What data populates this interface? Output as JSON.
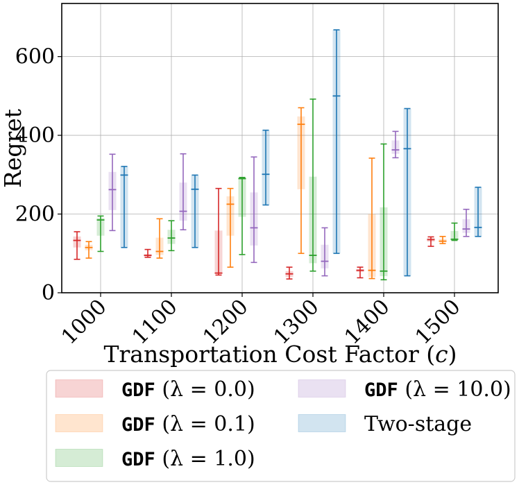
{
  "chart_data": {
    "type": "box",
    "title": "",
    "xlabel": "Transportation Cost Factor (c)",
    "xlabel_plain": "Transportation Cost Factor (",
    "xlabel_var": "c",
    "xlabel_close": ")",
    "ylabel": "Regret",
    "ylim": [
      0,
      735
    ],
    "yticks": [
      0,
      200,
      400,
      600
    ],
    "ytick_labels": [
      "0",
      "200",
      "400",
      "600"
    ],
    "grid": true,
    "legend_position": "bottom",
    "categories": [
      "1000",
      "1100",
      "1200",
      "1300",
      "1400",
      "1500"
    ],
    "series": [
      {
        "name": "GDF (λ = 0.0)",
        "legend_mono": "GDF",
        "legend_rest": " (λ = 0.0)",
        "color": "#d62728",
        "boxes": [
          {
            "min": 85,
            "q1": 115,
            "median": 133,
            "q3": 143,
            "max": 155
          },
          {
            "min": 90,
            "q1": 92,
            "median": 95,
            "q3": 98,
            "max": 110
          },
          {
            "min": 45,
            "q1": 48,
            "median": 50,
            "q3": 158,
            "max": 265
          },
          {
            "min": 35,
            "q1": 40,
            "median": 48,
            "q3": 55,
            "max": 65
          },
          {
            "min": 38,
            "q1": 53,
            "median": 57,
            "q3": 60,
            "max": 65
          },
          {
            "min": 118,
            "q1": 130,
            "median": 135,
            "q3": 139,
            "max": 142
          }
        ]
      },
      {
        "name": "GDF (λ = 0.1)",
        "legend_mono": "GDF",
        "legend_rest": " (λ = 0.1)",
        "color": "#ff7f0e",
        "boxes": [
          {
            "min": 88,
            "q1": 108,
            "median": 115,
            "q3": 122,
            "max": 130
          },
          {
            "min": 88,
            "q1": 96,
            "median": 105,
            "q3": 140,
            "max": 188
          },
          {
            "min": 65,
            "q1": 145,
            "median": 225,
            "q3": 245,
            "max": 265
          },
          {
            "min": 100,
            "q1": 263,
            "median": 428,
            "q3": 448,
            "max": 470
          },
          {
            "min": 36,
            "q1": 40,
            "median": 57,
            "q3": 200,
            "max": 342
          },
          {
            "min": 125,
            "q1": 129,
            "median": 131,
            "q3": 137,
            "max": 143
          }
        ]
      },
      {
        "name": "GDF (λ = 1.0)",
        "legend_mono": "GDF",
        "legend_rest": " (λ = 1.0)",
        "color": "#2ca02c",
        "boxes": [
          {
            "min": 105,
            "q1": 145,
            "median": 185,
            "q3": 190,
            "max": 195
          },
          {
            "min": 107,
            "q1": 124,
            "median": 139,
            "q3": 160,
            "max": 183
          },
          {
            "min": 97,
            "q1": 193,
            "median": 290,
            "q3": 292,
            "max": 293
          },
          {
            "min": 55,
            "q1": 75,
            "median": 95,
            "q3": 295,
            "max": 492
          },
          {
            "min": 33,
            "q1": 42,
            "median": 55,
            "q3": 217,
            "max": 378
          },
          {
            "min": 133,
            "q1": 135,
            "median": 136,
            "q3": 157,
            "max": 177
          }
        ]
      },
      {
        "name": "GDF (λ = 10.0)",
        "legend_mono": "GDF",
        "legend_rest": " (λ = 10.0)",
        "color": "#9467bd",
        "boxes": [
          {
            "min": 158,
            "q1": 210,
            "median": 262,
            "q3": 307,
            "max": 352
          },
          {
            "min": 160,
            "q1": 183,
            "median": 207,
            "q3": 280,
            "max": 353
          },
          {
            "min": 77,
            "q1": 120,
            "median": 165,
            "q3": 255,
            "max": 345
          },
          {
            "min": 43,
            "q1": 62,
            "median": 80,
            "q3": 122,
            "max": 165
          },
          {
            "min": 343,
            "q1": 353,
            "median": 363,
            "q3": 387,
            "max": 410
          },
          {
            "min": 143,
            "q1": 152,
            "median": 162,
            "q3": 187,
            "max": 212
          }
        ]
      },
      {
        "name": "Two-stage",
        "legend_mono": "",
        "legend_rest": "Two-stage",
        "color": "#1f77b4",
        "boxes": [
          {
            "min": 115,
            "q1": 115,
            "median": 299,
            "q3": 321,
            "max": 321
          },
          {
            "min": 115,
            "q1": 115,
            "median": 263,
            "q3": 299,
            "max": 299
          },
          {
            "min": 223,
            "q1": 223,
            "median": 301,
            "q3": 413,
            "max": 413
          },
          {
            "min": 100,
            "q1": 100,
            "median": 500,
            "q3": 668,
            "max": 668
          },
          {
            "min": 43,
            "q1": 43,
            "median": 366,
            "q3": 468,
            "max": 468
          },
          {
            "min": 143,
            "q1": 143,
            "median": 166,
            "q3": 268,
            "max": 268
          }
        ]
      }
    ]
  }
}
